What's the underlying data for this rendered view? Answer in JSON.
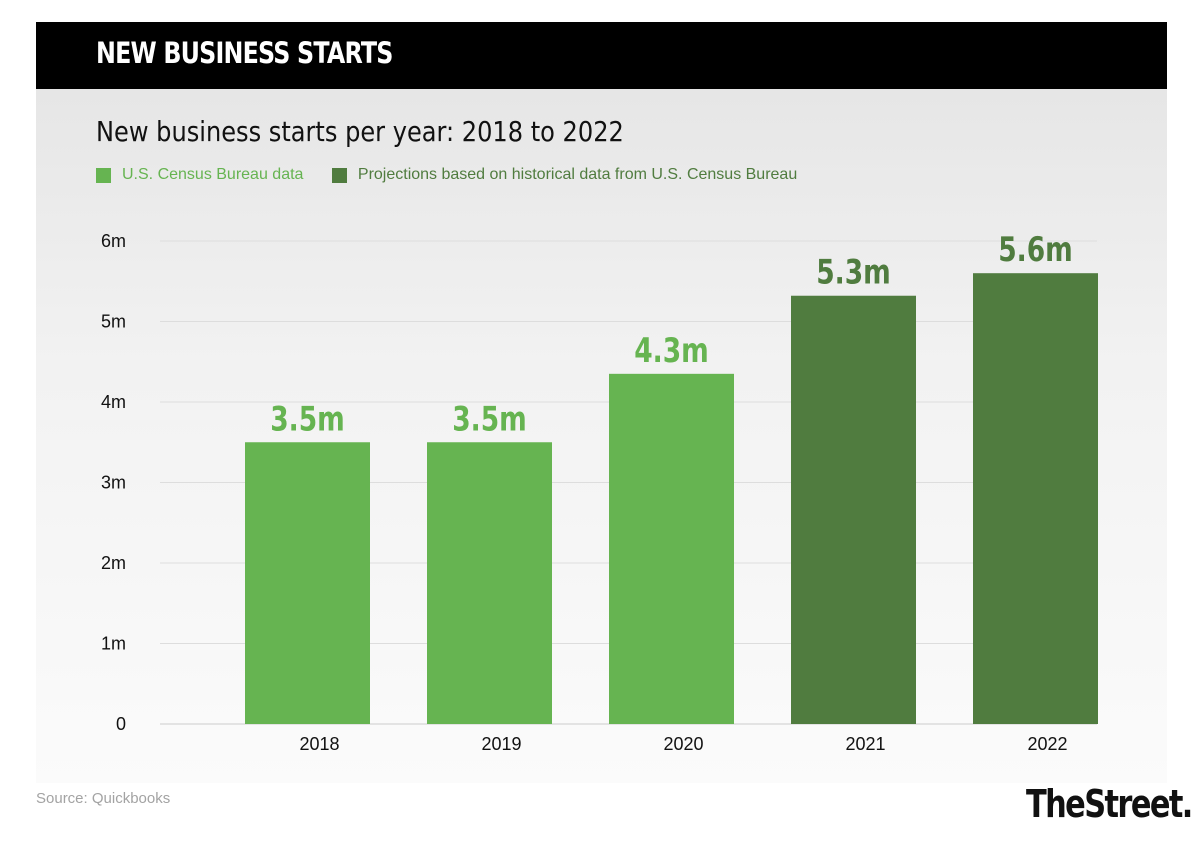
{
  "header": {
    "title": "NEW BUSINESS STARTS"
  },
  "source": "Source: Quickbooks",
  "logo": "TheStreet.",
  "colors": {
    "census": "#66b451",
    "projection": "#507c3f",
    "gridline": "#dddddd",
    "axis_text": "#111111"
  },
  "legend": [
    {
      "label": "U.S. Census Bureau data",
      "color": "#66b451"
    },
    {
      "label": "Projections based on historical data from U.S. Census Bureau",
      "color": "#507c3f"
    }
  ],
  "chart_data": {
    "type": "bar",
    "title": "New business starts per year: 2018 to 2022",
    "xlabel": "",
    "ylabel": "",
    "categories": [
      "2018",
      "2019",
      "2020",
      "2021",
      "2022"
    ],
    "values": [
      3.5,
      3.5,
      4.35,
      5.32,
      5.6
    ],
    "data_labels": [
      "3.5m",
      "3.5m",
      "4.3m",
      "5.3m",
      "5.6m"
    ],
    "series_kind": [
      "census",
      "census",
      "census",
      "projection",
      "projection"
    ],
    "ylim": [
      0,
      6
    ],
    "yticks": [
      0,
      1,
      2,
      3,
      4,
      5,
      6
    ],
    "ytick_labels": [
      "0",
      "1m",
      "2m",
      "3m",
      "4m",
      "5m",
      "6m"
    ],
    "grid": true
  }
}
